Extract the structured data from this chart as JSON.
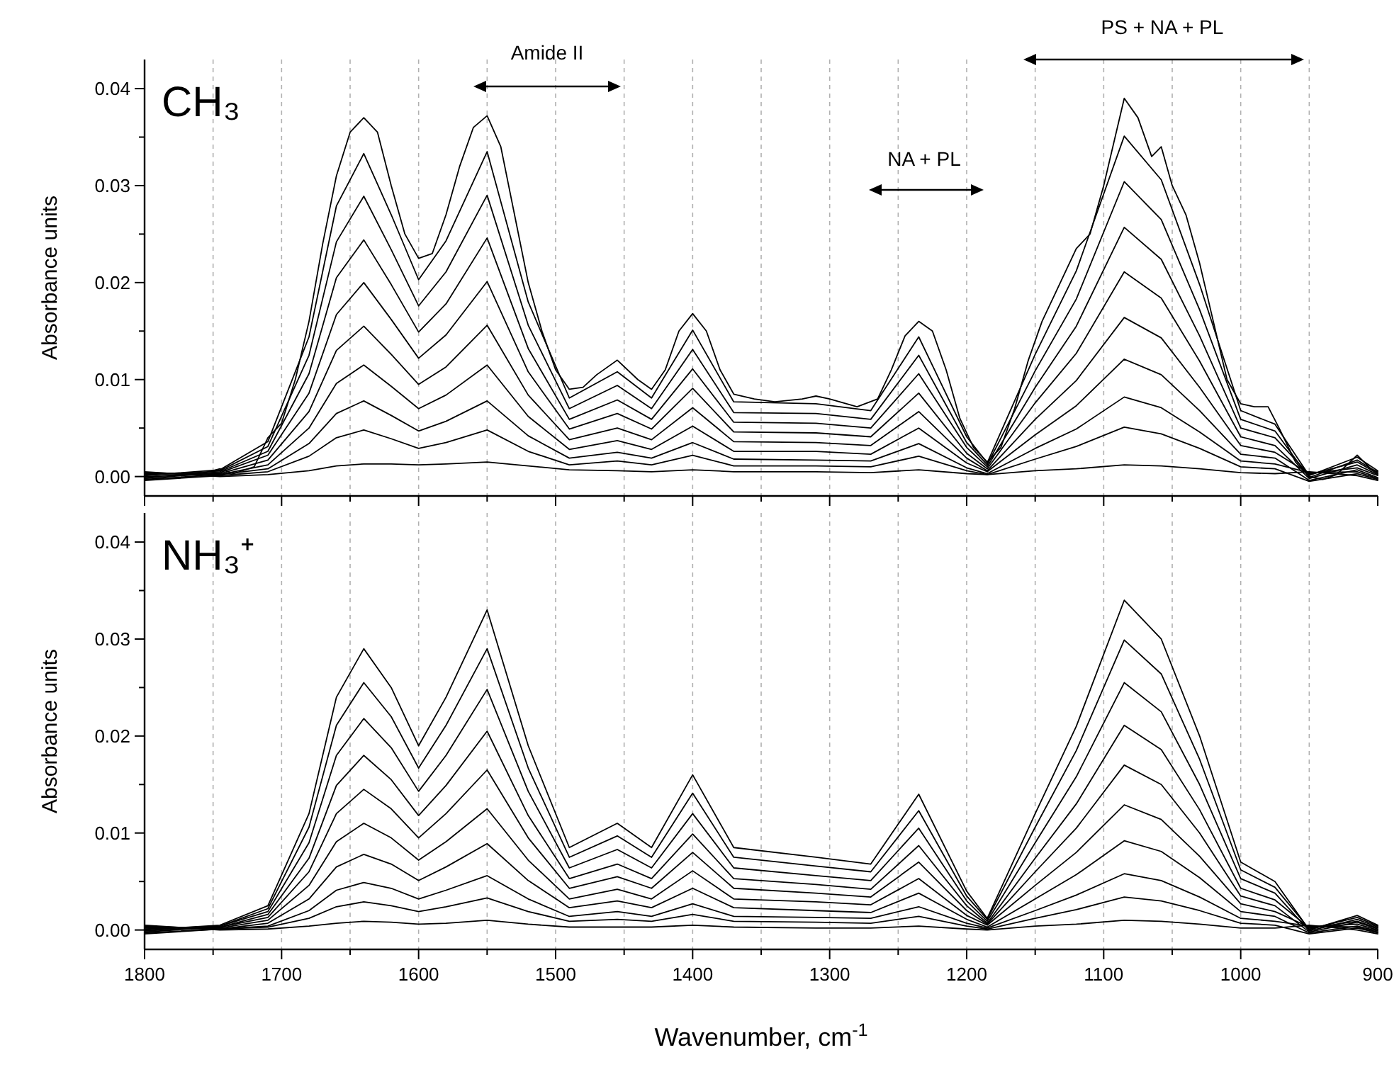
{
  "chart_data": [
    {
      "type": "line",
      "title": "CH₃",
      "ylabel": "Absorbance units",
      "xlim": [
        1800,
        900
      ],
      "ylim": [
        -0.002,
        0.043
      ],
      "grid": "x",
      "tick_labels": "y",
      "xticks": [
        1800,
        {
          "value": 1750,
          "label": null
        },
        1700,
        {
          "value": 1650,
          "label": null
        },
        1600,
        {
          "value": 1550,
          "label": null
        },
        1500,
        {
          "value": 1450,
          "label": null
        },
        1400,
        {
          "value": 1350,
          "label": null
        },
        1300,
        {
          "value": 1250,
          "label": null
        },
        1200,
        {
          "value": 1150,
          "label": null
        },
        1100,
        {
          "value": 1050,
          "label": null
        },
        1000,
        {
          "value": 950,
          "label": null
        },
        900
      ],
      "yticks": [
        {
          "value": 0,
          "label": "0.00"
        },
        {
          "value": 0.005,
          "label": null
        },
        {
          "value": 0.01,
          "label": "0.01"
        },
        {
          "value": 0.015,
          "label": null
        },
        {
          "value": 0.02,
          "label": "0.02"
        },
        {
          "value": 0.025,
          "label": null
        },
        {
          "value": 0.03,
          "label": "0.03"
        },
        {
          "value": 0.035,
          "label": null
        },
        {
          "value": 0.04,
          "label": "0.04"
        }
      ],
      "annotations": [
        "Amide II",
        "NA + PL",
        "PS + NA + PL"
      ],
      "x": [
        1800,
        1745,
        1710,
        1680,
        1660,
        1640,
        1620,
        1600,
        1580,
        1550,
        1520,
        1490,
        1455,
        1430,
        1400,
        1370,
        1310,
        1270,
        1235,
        1200,
        1185,
        1150,
        1120,
        1085,
        1058,
        1030,
        1000,
        975,
        950,
        915,
        900
      ],
      "series": [
        {
          "color": "#000000",
          "x": [
            1800,
            1760,
            1745,
            1735,
            1720,
            1710,
            1700,
            1690,
            1680,
            1670,
            1660,
            1650,
            1640,
            1630,
            1620,
            1610,
            1600,
            1590,
            1580,
            1570,
            1560,
            1550,
            1540,
            1530,
            1520,
            1510,
            1500,
            1490,
            1480,
            1470,
            1455,
            1440,
            1430,
            1420,
            1410,
            1400,
            1390,
            1380,
            1370,
            1355,
            1340,
            1320,
            1310,
            1300,
            1280,
            1265,
            1255,
            1245,
            1235,
            1225,
            1215,
            1205,
            1195,
            1185,
            1175,
            1165,
            1155,
            1145,
            1135,
            1120,
            1110,
            1100,
            1090,
            1085,
            1075,
            1065,
            1058,
            1050,
            1040,
            1030,
            1020,
            1010,
            1000,
            990,
            980,
            972,
            960,
            950,
            940,
            930,
            915,
            905,
            900
          ],
          "values": [
            0,
            0.0002,
            0.0008,
            0.0003,
            0.001,
            0.004,
            0.0055,
            0.01,
            0.016,
            0.024,
            0.031,
            0.0355,
            0.037,
            0.0355,
            0.03,
            0.025,
            0.0225,
            0.023,
            0.027,
            0.032,
            0.036,
            0.0372,
            0.034,
            0.027,
            0.02,
            0.015,
            0.011,
            0.009,
            0.0092,
            0.0105,
            0.012,
            0.01,
            0.009,
            0.011,
            0.015,
            0.0168,
            0.015,
            0.011,
            0.0085,
            0.008,
            0.0077,
            0.008,
            0.0083,
            0.008,
            0.0072,
            0.008,
            0.011,
            0.0145,
            0.016,
            0.015,
            0.011,
            0.006,
            0.003,
            0.0015,
            0.003,
            0.007,
            0.012,
            0.016,
            0.019,
            0.0235,
            0.025,
            0.03,
            0.036,
            0.039,
            0.037,
            0.033,
            0.034,
            0.03,
            0.027,
            0.022,
            0.016,
            0.01,
            0.0075,
            0.0072,
            0.0072,
            0.005,
            0.0015,
            0,
            -0.0003,
            0.0002,
            0.0022,
            0.0008,
            0.0005
          ]
        },
        {
          "color": "#000000",
          "values": [
            0.0001,
            0.0007,
            0.0036,
            0.0144,
            0.0279,
            0.0333,
            0.027,
            0.0203,
            0.0243,
            0.0335,
            0.018,
            0.0081,
            0.0108,
            0.0081,
            0.0151,
            0.0077,
            0.0075,
            0.0068,
            0.0144,
            0.0041,
            0.0014,
            0.0126,
            0.0212,
            0.0351,
            0.0306,
            0.0198,
            0.0068,
            0.0054,
            0.0001,
            0.002,
            0.0006
          ]
        },
        {
          "color": "#000000",
          "values": [
            -0.0001,
            0.0006,
            0.0031,
            0.0125,
            0.0242,
            0.0289,
            0.0234,
            0.0176,
            0.0211,
            0.029,
            0.0156,
            0.007,
            0.0094,
            0.007,
            0.0131,
            0.0066,
            0.0065,
            0.0059,
            0.0125,
            0.0035,
            0.0012,
            0.0109,
            0.0183,
            0.0304,
            0.0265,
            0.0172,
            0.0059,
            0.0047,
            -0.0001,
            0.0017,
            0.0004
          ]
        },
        {
          "color": "#000000",
          "values": [
            0.0002,
            0.0005,
            0.0026,
            0.0106,
            0.0205,
            0.0244,
            0.0198,
            0.0149,
            0.0178,
            0.0246,
            0.0132,
            0.0059,
            0.0079,
            0.0059,
            0.0111,
            0.0056,
            0.0055,
            0.005,
            0.0106,
            0.003,
            0.001,
            0.0092,
            0.0155,
            0.0257,
            0.0224,
            0.0145,
            0.005,
            0.004,
            0.0002,
            0.0015,
            0.0003
          ]
        },
        {
          "color": "#000000",
          "values": [
            -0.0002,
            0.0004,
            0.0022,
            0.0086,
            0.0167,
            0.02,
            0.0162,
            0.0122,
            0.0146,
            0.0201,
            0.0108,
            0.0049,
            0.0065,
            0.0049,
            0.0091,
            0.0046,
            0.0045,
            0.0041,
            0.0086,
            0.0024,
            0.0008,
            0.0076,
            0.0127,
            0.0211,
            0.0184,
            0.0119,
            0.0041,
            0.0032,
            -0.0002,
            0.0012,
            0.0002
          ]
        },
        {
          "color": "#000000",
          "values": [
            0.0003,
            0.0003,
            0.0017,
            0.0067,
            0.013,
            0.0155,
            0.0126,
            0.0095,
            0.0113,
            0.0156,
            0.0084,
            0.0038,
            0.005,
            0.0038,
            0.0071,
            0.0036,
            0.0035,
            0.0032,
            0.0067,
            0.0019,
            0.0006,
            0.0059,
            0.0099,
            0.0164,
            0.0143,
            0.0092,
            0.0032,
            0.0025,
            0.0003,
            0.0009,
            0.0001
          ]
        },
        {
          "color": "#000000",
          "values": [
            -0.0003,
            0.0002,
            0.0012,
            0.005,
            0.0096,
            0.0115,
            0.0093,
            0.007,
            0.0084,
            0.0115,
            0.0062,
            0.0028,
            0.0037,
            0.0028,
            0.0052,
            0.0026,
            0.0026,
            0.0023,
            0.005,
            0.0014,
            0.0005,
            0.0043,
            0.0073,
            0.0121,
            0.0105,
            0.0068,
            0.0023,
            0.0019,
            -0.0004,
            0.0007,
            -0.0001
          ]
        },
        {
          "color": "#000000",
          "values": [
            0.0004,
            0.0002,
            0.0008,
            0.0034,
            0.0065,
            0.0078,
            0.0063,
            0.0047,
            0.0057,
            0.0078,
            0.0042,
            0.0019,
            0.0025,
            0.0019,
            0.0035,
            0.0018,
            0.0017,
            0.0016,
            0.0034,
            0.0009,
            0.0003,
            0.0029,
            0.0049,
            0.0082,
            0.0071,
            0.0046,
            0.0016,
            0.0013,
            0.0004,
            0.0005,
            -0.0002
          ]
        },
        {
          "color": "#000000",
          "values": [
            -0.0004,
            0.0001,
            0.0005,
            0.0021,
            0.004,
            0.0048,
            0.0039,
            0.0029,
            0.0035,
            0.0048,
            0.0026,
            0.0012,
            0.0016,
            0.0012,
            0.0022,
            0.0011,
            0.0011,
            0.001,
            0.0021,
            0.0006,
            0.0002,
            0.0018,
            0.0031,
            0.0051,
            0.0044,
            0.0029,
            0.001,
            0.0008,
            -0.0005,
            0.0003,
            -0.0003
          ]
        },
        {
          "color": "#000000",
          "values": [
            0.0005,
            0,
            0.0002,
            0.0006,
            0.0011,
            0.0013,
            0.0013,
            0.0012,
            0.0013,
            0.0015,
            0.0011,
            0.0007,
            0.0006,
            0.0005,
            0.0007,
            0.0005,
            0.0005,
            0.0004,
            0.0007,
            0.0003,
            0.0002,
            0.0006,
            0.0008,
            0.0012,
            0.0011,
            0.0008,
            0.0004,
            0.0003,
            0.0005,
            0.0001,
            -0.0004
          ]
        }
      ]
    },
    {
      "type": "line",
      "title": "NH₃⁺",
      "ylabel": "Absorbance units",
      "xlabel": "Wavenumber, cm$^{-1}$",
      "xlim": [
        1800,
        900
      ],
      "ylim": [
        -0.002,
        0.043
      ],
      "grid": "x",
      "xticks": [
        1800,
        {
          "value": 1750,
          "label": null
        },
        1700,
        {
          "value": 1650,
          "label": null
        },
        1600,
        {
          "value": 1550,
          "label": null
        },
        1500,
        {
          "value": 1450,
          "label": null
        },
        1400,
        {
          "value": 1350,
          "label": null
        },
        1300,
        {
          "value": 1250,
          "label": null
        },
        1200,
        {
          "value": 1150,
          "label": null
        },
        1100,
        {
          "value": 1050,
          "label": null
        },
        1000,
        {
          "value": 950,
          "label": null
        },
        900
      ],
      "yticks": [
        {
          "value": 0,
          "label": "0.00"
        },
        {
          "value": 0.005,
          "label": null
        },
        {
          "value": 0.01,
          "label": "0.01"
        },
        {
          "value": 0.015,
          "label": null
        },
        {
          "value": 0.02,
          "label": "0.02"
        },
        {
          "value": 0.025,
          "label": null
        },
        {
          "value": 0.03,
          "label": "0.03"
        },
        {
          "value": 0.035,
          "label": null
        },
        {
          "value": 0.04,
          "label": "0.04"
        }
      ],
      "x": [
        1800,
        1745,
        1710,
        1680,
        1660,
        1640,
        1620,
        1600,
        1580,
        1550,
        1520,
        1490,
        1455,
        1430,
        1400,
        1370,
        1310,
        1270,
        1235,
        1200,
        1185,
        1150,
        1120,
        1085,
        1058,
        1030,
        1000,
        975,
        950,
        915,
        900
      ],
      "series": [
        {
          "color": "#000000",
          "values": [
            0,
            0.0005,
            0.0025,
            0.012,
            0.024,
            0.029,
            0.025,
            0.019,
            0.024,
            0.033,
            0.019,
            0.0085,
            0.011,
            0.0085,
            0.016,
            0.0085,
            0.0075,
            0.0068,
            0.014,
            0.004,
            0.0012,
            0.012,
            0.021,
            0.034,
            0.03,
            0.02,
            0.007,
            0.005,
            0,
            0.0015,
            0.0005
          ]
        },
        {
          "color": "#000000",
          "values": [
            0.0001,
            0.0004,
            0.0022,
            0.0106,
            0.0211,
            0.0255,
            0.022,
            0.0167,
            0.0211,
            0.029,
            0.0167,
            0.0075,
            0.0097,
            0.0075,
            0.0141,
            0.0075,
            0.0066,
            0.006,
            0.0123,
            0.0035,
            0.0011,
            0.0106,
            0.0185,
            0.0299,
            0.0264,
            0.0176,
            0.0062,
            0.0044,
            0.0001,
            0.0013,
            0.0004
          ]
        },
        {
          "color": "#000000",
          "values": [
            -0.0001,
            0.0004,
            0.0019,
            0.009,
            0.018,
            0.0218,
            0.0188,
            0.0143,
            0.018,
            0.0248,
            0.0143,
            0.0064,
            0.0083,
            0.0064,
            0.012,
            0.0064,
            0.0056,
            0.0051,
            0.0105,
            0.003,
            0.0009,
            0.009,
            0.0158,
            0.0255,
            0.0225,
            0.015,
            0.0053,
            0.0038,
            -0.0001,
            0.0011,
            0.0003
          ]
        },
        {
          "color": "#000000",
          "values": [
            0.0002,
            0.0003,
            0.0016,
            0.0074,
            0.0149,
            0.018,
            0.0155,
            0.0118,
            0.0149,
            0.0205,
            0.0118,
            0.0053,
            0.0068,
            0.0053,
            0.0099,
            0.0053,
            0.0047,
            0.0042,
            0.0087,
            0.0025,
            0.0007,
            0.0074,
            0.013,
            0.0211,
            0.0186,
            0.0124,
            0.0043,
            0.0031,
            0.0002,
            0.0009,
            0.0002
          ]
        },
        {
          "color": "#000000",
          "values": [
            -0.0002,
            0.0003,
            0.0013,
            0.006,
            0.012,
            0.0145,
            0.0125,
            0.0095,
            0.012,
            0.0165,
            0.0095,
            0.0043,
            0.0055,
            0.0043,
            0.008,
            0.0043,
            0.0038,
            0.0034,
            0.007,
            0.002,
            0.0006,
            0.006,
            0.0105,
            0.017,
            0.015,
            0.01,
            0.0035,
            0.0025,
            -0.0002,
            0.0008,
            0.0001
          ]
        },
        {
          "color": "#000000",
          "values": [
            0.0003,
            0.0002,
            0.001,
            0.0046,
            0.0091,
            0.011,
            0.0095,
            0.0072,
            0.0091,
            0.0125,
            0.0072,
            0.0032,
            0.0042,
            0.0032,
            0.0061,
            0.0032,
            0.0029,
            0.0026,
            0.0053,
            0.0015,
            0.0005,
            0.0046,
            0.008,
            0.0129,
            0.0114,
            0.0076,
            0.0027,
            0.0019,
            0.0003,
            0.0006,
            0
          ]
        },
        {
          "color": "#000000",
          "values": [
            -0.0003,
            0.0001,
            0.0007,
            0.0032,
            0.0065,
            0.0078,
            0.0068,
            0.0051,
            0.0065,
            0.0089,
            0.0051,
            0.0023,
            0.003,
            0.0023,
            0.0043,
            0.0023,
            0.002,
            0.0018,
            0.0038,
            0.0011,
            0.0003,
            0.0032,
            0.0057,
            0.0092,
            0.0081,
            0.0054,
            0.0019,
            0.0014,
            -0.0003,
            0.0004,
            -0.0001
          ]
        },
        {
          "color": "#000000",
          "values": [
            0.0004,
            0.0001,
            0.0004,
            0.002,
            0.0041,
            0.0049,
            0.0043,
            0.0032,
            0.0041,
            0.0056,
            0.0032,
            0.0014,
            0.0019,
            0.0014,
            0.0027,
            0.0014,
            0.0013,
            0.0012,
            0.0024,
            0.0007,
            0.0002,
            0.002,
            0.0036,
            0.0058,
            0.0051,
            0.0034,
            0.0012,
            0.0009,
            0.0004,
            0.0003,
            -0.0002
          ]
        },
        {
          "color": "#000000",
          "values": [
            -0.0004,
            0.0001,
            0.0003,
            0.0012,
            0.0024,
            0.0029,
            0.0025,
            0.0019,
            0.0024,
            0.0033,
            0.0019,
            0.0009,
            0.0011,
            0.0009,
            0.0016,
            0.0009,
            0.0008,
            0.0007,
            0.0014,
            0.0004,
            0.0001,
            0.0012,
            0.0021,
            0.0034,
            0.003,
            0.002,
            0.0007,
            0.0005,
            -0.0004,
            0.0002,
            -0.0003
          ]
        },
        {
          "color": "#000000",
          "values": [
            0.0005,
            0,
            0.0001,
            0.0004,
            0.0007,
            0.0009,
            0.0008,
            0.0006,
            0.0007,
            0.001,
            0.0006,
            0.0003,
            0.0003,
            0.0003,
            0.0005,
            0.0003,
            0.0002,
            0.0002,
            0.0004,
            0.0001,
            0,
            0.0004,
            0.0006,
            0.001,
            0.0009,
            0.0006,
            0.0002,
            0.0002,
            0.0005,
            0,
            -0.0004
          ]
        }
      ]
    }
  ]
}
